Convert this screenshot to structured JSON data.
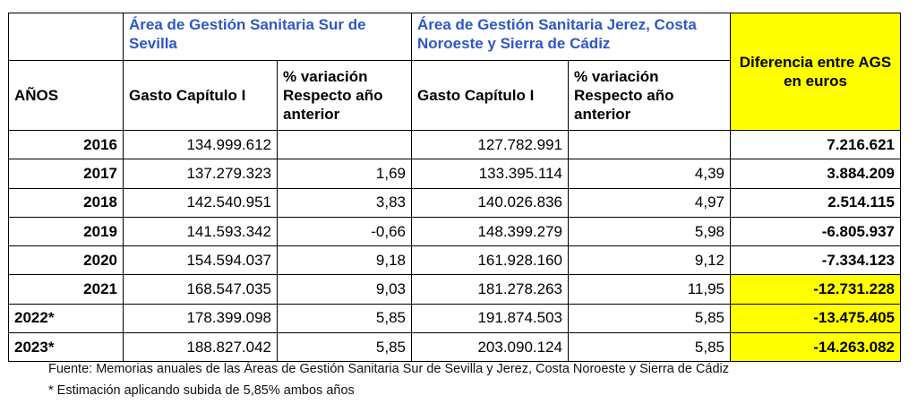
{
  "header": {
    "area1": "Área de Gestión Sanitaria Sur de Sevilla",
    "area2": "Área de Gestión Sanitaria Jerez, Costa Noroeste y Sierra de Cádiz",
    "years_label": "AÑOS",
    "gasto_label": "Gasto Capítulo I",
    "variacion_label": "% variación Respecto año anterior",
    "diff_label": "Diferencia entre AGS en euros"
  },
  "rows": [
    {
      "year": "2016",
      "gasto1": "134.999.612",
      "var1": "",
      "gasto2": "127.782.991",
      "var2": "",
      "diff": "7.216.621",
      "highlight": false
    },
    {
      "year": "2017",
      "gasto1": "137.279.323",
      "var1": "1,69",
      "gasto2": "133.395.114",
      "var2": "4,39",
      "diff": "3.884.209",
      "highlight": false
    },
    {
      "year": "2018",
      "gasto1": "142.540.951",
      "var1": "3,83",
      "gasto2": "140.026.836",
      "var2": "4,97",
      "diff": "2.514.115",
      "highlight": false
    },
    {
      "year": "2019",
      "gasto1": "141.593.342",
      "var1": "-0,66",
      "gasto2": "148.399.279",
      "var2": "5,98",
      "diff": "-6.805.937",
      "highlight": false
    },
    {
      "year": "2020",
      "gasto1": "154.594.037",
      "var1": "9,18",
      "gasto2": "161.928.160",
      "var2": "9,12",
      "diff": "-7.334.123",
      "highlight": false
    },
    {
      "year": "2021",
      "gasto1": "168.547.035",
      "var1": "9,03",
      "gasto2": "181.278.263",
      "var2": "11,95",
      "diff": "-12.731.228",
      "highlight": true
    },
    {
      "year": "2022*",
      "gasto1": "178.399.098",
      "var1": "5,85",
      "gasto2": "191.874.503",
      "var2": "5,85",
      "diff": "-13.475.405",
      "highlight": true
    },
    {
      "year": "2023*",
      "gasto1": "188.827.042",
      "var1": "5,85",
      "gasto2": "203.090.124",
      "var2": "5,85",
      "diff": "-14.263.082",
      "highlight": true
    }
  ],
  "footnotes": {
    "source": "Fuente:  Memorias anuales de las Áreas de Gestión Sanitaria Sur de Sevilla  y Jerez, Costa Noroeste y Sierra de Cádiz",
    "estimate": "* Estimación  aplicando subida de 5,85% ambos años"
  },
  "colors": {
    "area_title": "#2e57c6",
    "highlight": "#ffff00"
  }
}
